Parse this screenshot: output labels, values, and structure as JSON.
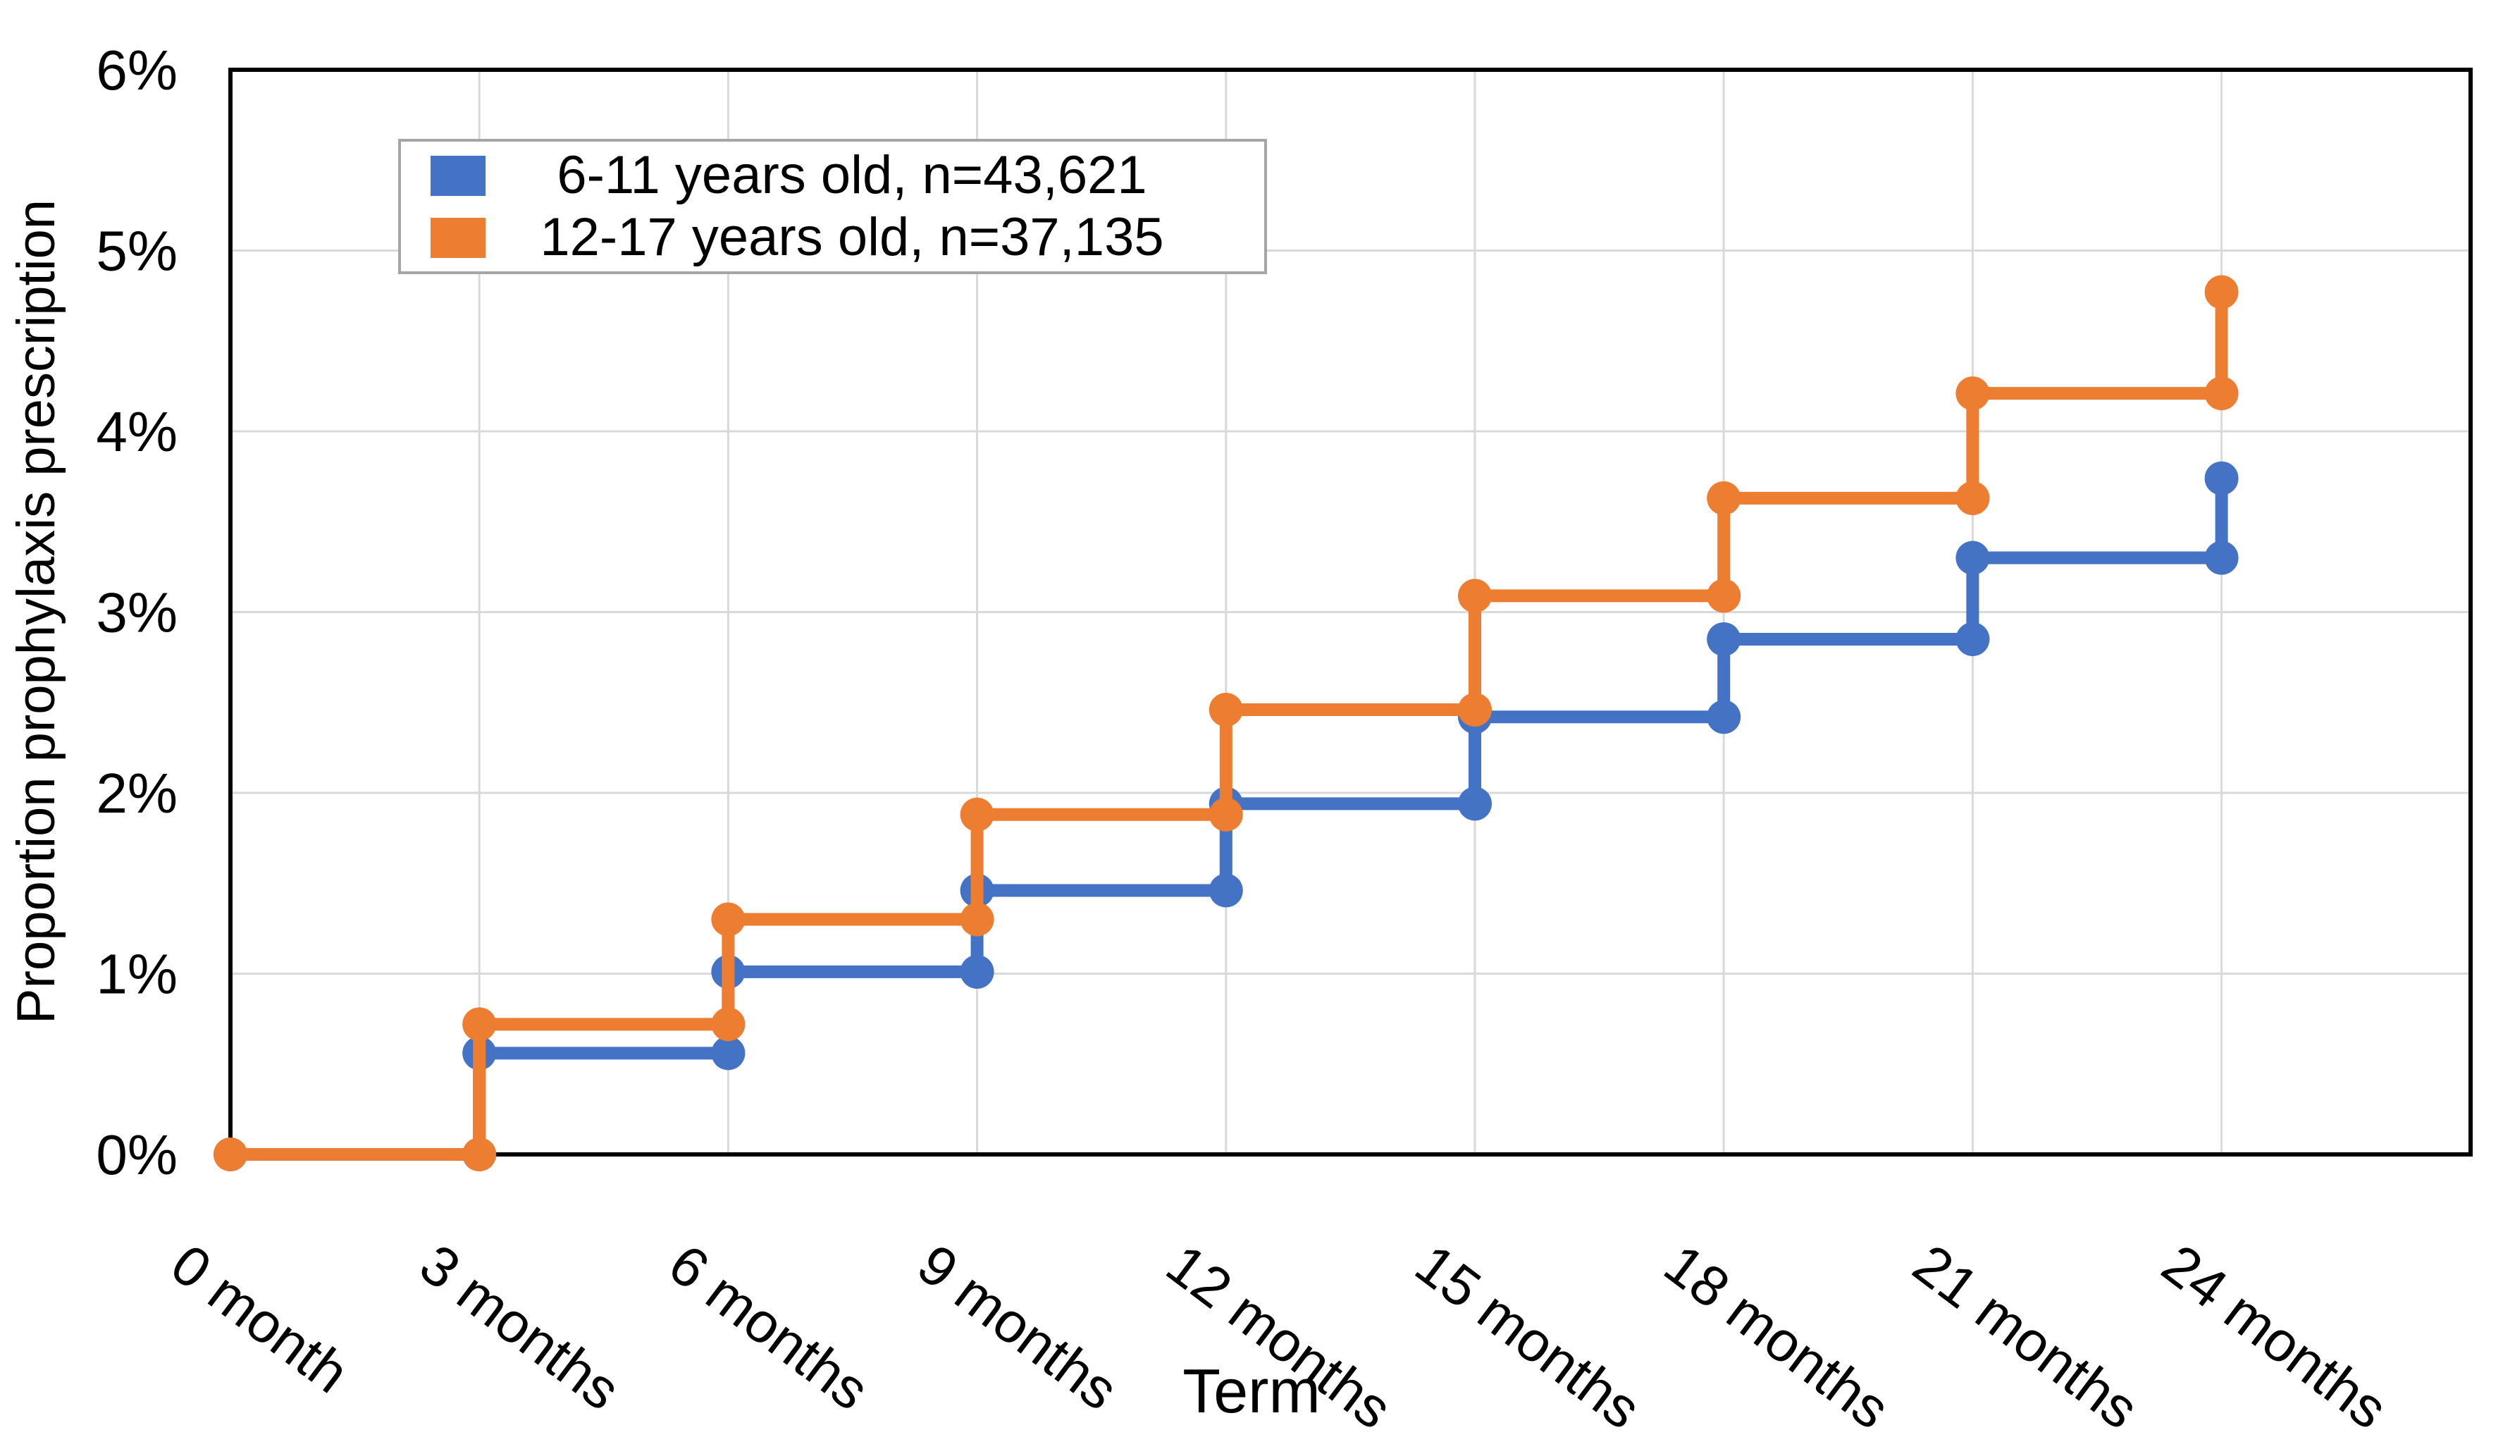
{
  "chart_data": {
    "type": "line",
    "subtype": "step-after-with-markers",
    "title": "",
    "xlabel": "Term",
    "ylabel": "Proportion prophylaxis prescription",
    "categories": [
      "0 month",
      "3 months",
      "6 months",
      "9 months",
      "12 months",
      "15 months",
      "18 months",
      "21 months",
      "24 months"
    ],
    "x_months": [
      0,
      3,
      6,
      9,
      12,
      15,
      18,
      21,
      24
    ],
    "series": [
      {
        "name": "6-11 years old, n=43,621",
        "color": "#4472C4",
        "values_pct": [
          0,
          0.56,
          1.01,
          1.46,
          1.94,
          2.42,
          2.85,
          3.3,
          3.74
        ]
      },
      {
        "name": "12-17 years old, n=37,135",
        "color": "#ED7D31",
        "values_pct": [
          0,
          0.72,
          1.3,
          1.88,
          2.46,
          3.09,
          3.63,
          4.21,
          4.77
        ]
      }
    ],
    "y_ticks": [
      "0%",
      "1%",
      "2%",
      "3%",
      "4%",
      "5%",
      "6%"
    ],
    "ylim": [
      0,
      6
    ],
    "grid": true,
    "grid_color": "#D9D9D9",
    "axis_color": "#000000",
    "text_color": "#000000",
    "legend_position": "inside-top-left",
    "legend_border_color": "#A6A6A6",
    "plot_background": "#FFFFFF"
  }
}
